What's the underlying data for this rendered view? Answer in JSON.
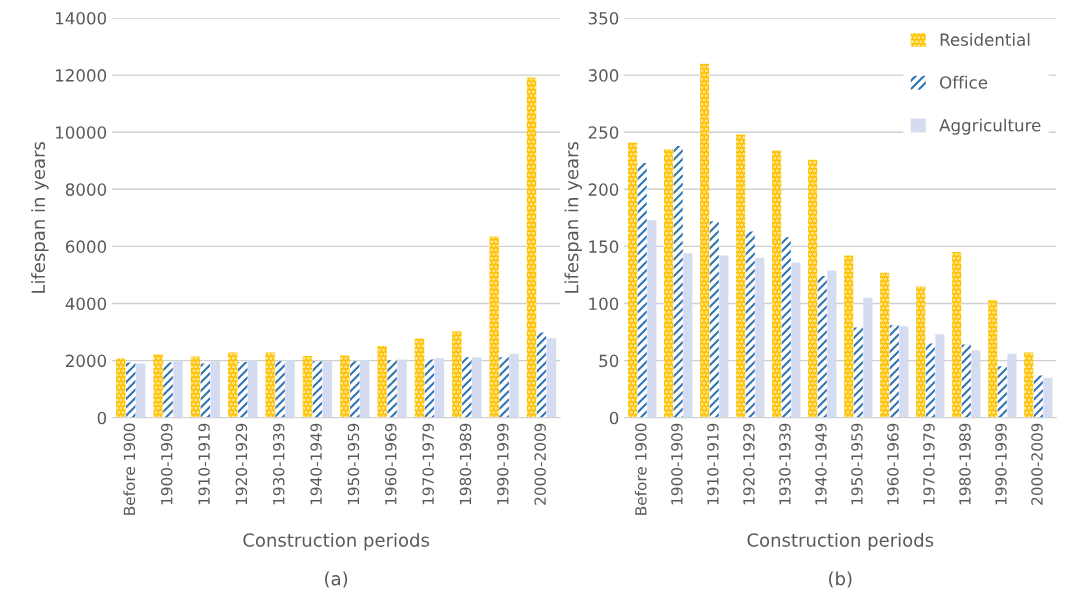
{
  "chart_data": [
    {
      "type": "bar",
      "xlabel": "Construction periods",
      "ylabel": "Lifespan in years",
      "annotations": [
        "(a)"
      ],
      "categories": [
        "Before 1900",
        "1900-1909",
        "1910-1919",
        "1920-1929",
        "1930-1939",
        "1940-1949",
        "1950-1959",
        "1960-1969",
        "1970-1979",
        "1980-1989",
        "1990-1999",
        "2000-2009"
      ],
      "series": [
        {
          "color": "#ffc000",
          "values": [
            2070,
            2220,
            2140,
            2280,
            2280,
            2160,
            2180,
            2510,
            2770,
            3030,
            6350,
            11920
          ]
        },
        {
          "color": "#2e75b6",
          "values": [
            1930,
            1930,
            1900,
            1950,
            1980,
            1980,
            1980,
            2010,
            2040,
            2120,
            2120,
            2980
          ]
        },
        {
          "color": "#d6dcf0",
          "values": [
            1900,
            1980,
            1980,
            2020,
            2020,
            1980,
            2020,
            2040,
            2080,
            2120,
            2240,
            2780
          ]
        }
      ],
      "ylim": [
        0,
        14000
      ],
      "yticks": [
        0,
        2000,
        4000,
        6000,
        8000,
        10000,
        12000,
        14000
      ],
      "grid": "y",
      "legend": false
    },
    {
      "type": "bar",
      "xlabel": "Construction periods",
      "ylabel": "Lifespan in years",
      "annotations": [
        "(b)"
      ],
      "categories": [
        "Before 1900",
        "1900-1909",
        "1910-1919",
        "1920-1929",
        "1930-1939",
        "1940-1949",
        "1950-1959",
        "1960-1969",
        "1970-1979",
        "1980-1989",
        "1990-1999",
        "2000-2009"
      ],
      "series": [
        {
          "name": "Residential",
          "color": "#ffc000",
          "values": [
            241,
            235,
            310,
            248,
            234,
            226,
            142,
            127,
            115,
            145,
            103,
            57
          ]
        },
        {
          "name": "Office",
          "color": "#2e75b6",
          "values": [
            223,
            238,
            172,
            163,
            158,
            124,
            79,
            81,
            65,
            64,
            45,
            37
          ]
        },
        {
          "name": "Aggriculture",
          "color": "#d6dcf0",
          "values": [
            173,
            144,
            142,
            140,
            136,
            129,
            105,
            80,
            73,
            59,
            56,
            35
          ]
        }
      ],
      "ylim": [
        0,
        350
      ],
      "yticks": [
        0,
        50,
        100,
        150,
        200,
        250,
        300,
        350
      ],
      "grid": "y",
      "legend": "top right"
    }
  ]
}
